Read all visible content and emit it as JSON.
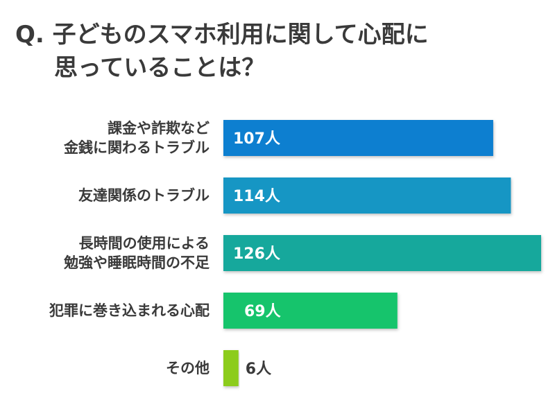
{
  "title": {
    "line1": "Q. 子どものスマホ利用に関して心配に",
    "line2": "思っていることは？"
  },
  "chart_data": {
    "type": "bar",
    "orientation": "horizontal",
    "categories": [
      [
        "課金や詐欺など",
        "金銭に関わるトラブル"
      ],
      [
        "友達関係のトラブル"
      ],
      [
        "長時間の使用による",
        "勉強や睡眠時間の不足"
      ],
      [
        "犯罪に巻き込まれる心配"
      ],
      [
        "その他"
      ]
    ],
    "values": [
      107,
      114,
      126,
      69,
      6
    ],
    "value_labels": [
      "107人",
      "114人",
      "126人",
      "69人",
      "6人"
    ],
    "bar_colors": [
      "#0e7fd0",
      "#1296c4",
      "#12a89c",
      "#17c46c",
      "#8ccc1e"
    ],
    "xlim": [
      0,
      126
    ],
    "grid": false,
    "legend": "none"
  }
}
